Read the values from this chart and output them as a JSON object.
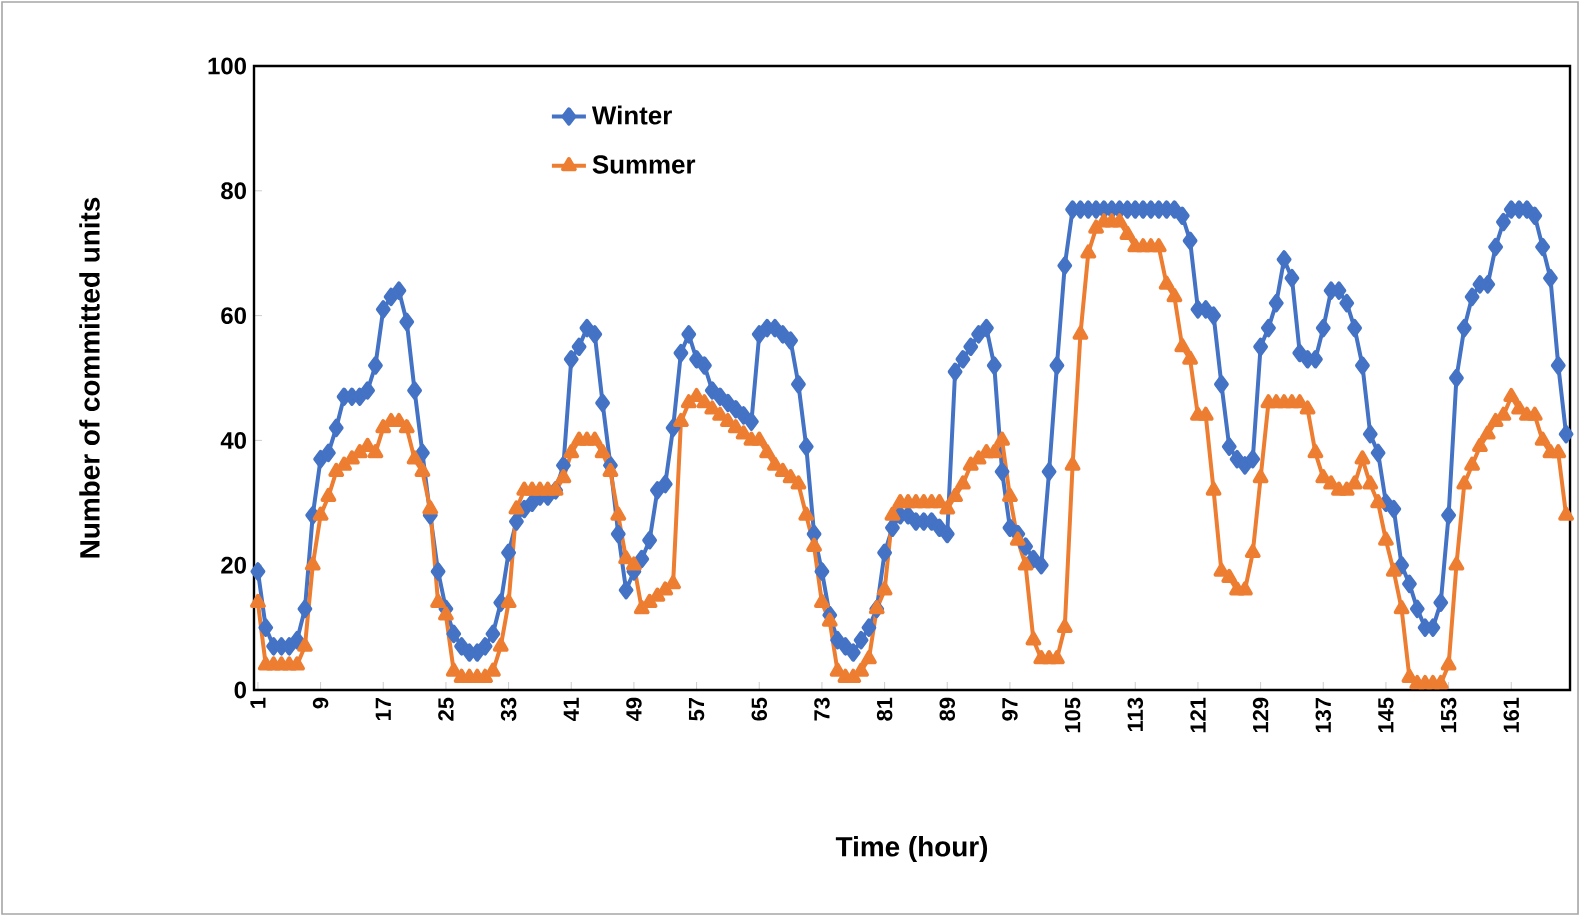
{
  "chart_data": {
    "type": "line",
    "xlabel": "Time (hour)",
    "ylabel": "Number of committed units",
    "categories": [
      "1",
      null,
      null,
      null,
      null,
      null,
      null,
      null,
      "9",
      null,
      null,
      null,
      null,
      null,
      null,
      null,
      "17",
      null,
      null,
      null,
      null,
      null,
      null,
      null,
      "25",
      null,
      null,
      null,
      null,
      null,
      null,
      null,
      "33",
      null,
      null,
      null,
      null,
      null,
      null,
      null,
      "41",
      null,
      null,
      null,
      null,
      null,
      null,
      null,
      "49",
      null,
      null,
      null,
      null,
      null,
      null,
      null,
      "57",
      null,
      null,
      null,
      null,
      null,
      null,
      null,
      "65",
      null,
      null,
      null,
      null,
      null,
      null,
      null,
      "73",
      null,
      null,
      null,
      null,
      null,
      null,
      null,
      "81",
      null,
      null,
      null,
      null,
      null,
      null,
      null,
      "89",
      null,
      null,
      null,
      null,
      null,
      null,
      null,
      "97",
      null,
      null,
      null,
      null,
      null,
      null,
      null,
      "105",
      null,
      null,
      null,
      null,
      null,
      null,
      null,
      "113",
      null,
      null,
      null,
      null,
      null,
      null,
      null,
      "121",
      null,
      null,
      null,
      null,
      null,
      null,
      null,
      "129",
      null,
      null,
      null,
      null,
      null,
      null,
      null,
      "137",
      null,
      null,
      null,
      null,
      null,
      null,
      null,
      "145",
      null,
      null,
      null,
      null,
      null,
      null,
      null,
      "153",
      null,
      null,
      null,
      null,
      null,
      null,
      null,
      "161",
      null,
      null,
      null,
      null,
      null,
      null,
      null
    ],
    "series": [
      {
        "name": "Winter",
        "color": "#4472c4",
        "marker": "diamond",
        "values": [
          19,
          10,
          7,
          7,
          7,
          8,
          13,
          28,
          37,
          38,
          42,
          47,
          47,
          47,
          48,
          52,
          61,
          63,
          64,
          59,
          48,
          38,
          28,
          19,
          13,
          9,
          7,
          6,
          6,
          7,
          9,
          14,
          22,
          27,
          29,
          30,
          31,
          31,
          32,
          36,
          53,
          55,
          58,
          57,
          46,
          36,
          25,
          16,
          19,
          21,
          24,
          32,
          33,
          42,
          54,
          57,
          53,
          52,
          48,
          47,
          46,
          45,
          44,
          43,
          57,
          58,
          58,
          57,
          56,
          49,
          39,
          25,
          19,
          12,
          8,
          7,
          6,
          8,
          10,
          13,
          22,
          26,
          28,
          28,
          27,
          27,
          27,
          26,
          25,
          51,
          53,
          55,
          57,
          58,
          52,
          35,
          26,
          25,
          23,
          21,
          20,
          35,
          52,
          68,
          77,
          77,
          77,
          77,
          77,
          77,
          77,
          77,
          77,
          77,
          77,
          77,
          77,
          77,
          76,
          72,
          61,
          61,
          60,
          49,
          39,
          37,
          36,
          37,
          55,
          58,
          62,
          69,
          66,
          54,
          53,
          53,
          58,
          64,
          64,
          62,
          58,
          52,
          41,
          38,
          30,
          29,
          20,
          17,
          13,
          10,
          10,
          14,
          28,
          50,
          58,
          63,
          65,
          65,
          71,
          75,
          77,
          77,
          77,
          76,
          71,
          66,
          52,
          41
        ]
      },
      {
        "name": "Summer",
        "color": "#ed7d31",
        "marker": "triangle",
        "values": [
          14,
          4,
          4,
          4,
          4,
          4,
          7,
          20,
          28,
          31,
          35,
          36,
          37,
          38,
          39,
          38,
          42,
          43,
          43,
          42,
          37,
          35,
          29,
          14,
          12,
          3,
          2,
          2,
          2,
          2,
          3,
          7,
          14,
          29,
          32,
          32,
          32,
          32,
          32,
          34,
          38,
          40,
          40,
          40,
          38,
          35,
          28,
          21,
          20,
          13,
          14,
          15,
          16,
          17,
          43,
          46,
          47,
          46,
          45,
          44,
          43,
          42,
          41,
          40,
          40,
          38,
          36,
          35,
          34,
          33,
          28,
          23,
          14,
          11,
          3,
          2,
          2,
          3,
          5,
          13,
          16,
          28,
          30,
          30,
          30,
          30,
          30,
          30,
          29,
          31,
          33,
          36,
          37,
          38,
          38,
          40,
          31,
          24,
          20,
          8,
          5,
          5,
          5,
          10,
          36,
          57,
          70,
          74,
          75,
          75,
          75,
          73,
          71,
          71,
          71,
          71,
          65,
          63,
          55,
          53,
          44,
          44,
          32,
          19,
          18,
          16,
          16,
          22,
          34,
          46,
          46,
          46,
          46,
          46,
          45,
          38,
          34,
          33,
          32,
          32,
          33,
          37,
          33,
          30,
          24,
          19,
          13,
          2,
          1,
          1,
          1,
          1,
          4,
          20,
          33,
          36,
          39,
          41,
          43,
          44,
          47,
          45,
          44,
          44,
          40,
          38,
          38,
          28
        ]
      }
    ],
    "ylim": [
      0,
      100
    ],
    "yticks": [
      0,
      20,
      40,
      60,
      80,
      100
    ],
    "legend": "top left"
  }
}
